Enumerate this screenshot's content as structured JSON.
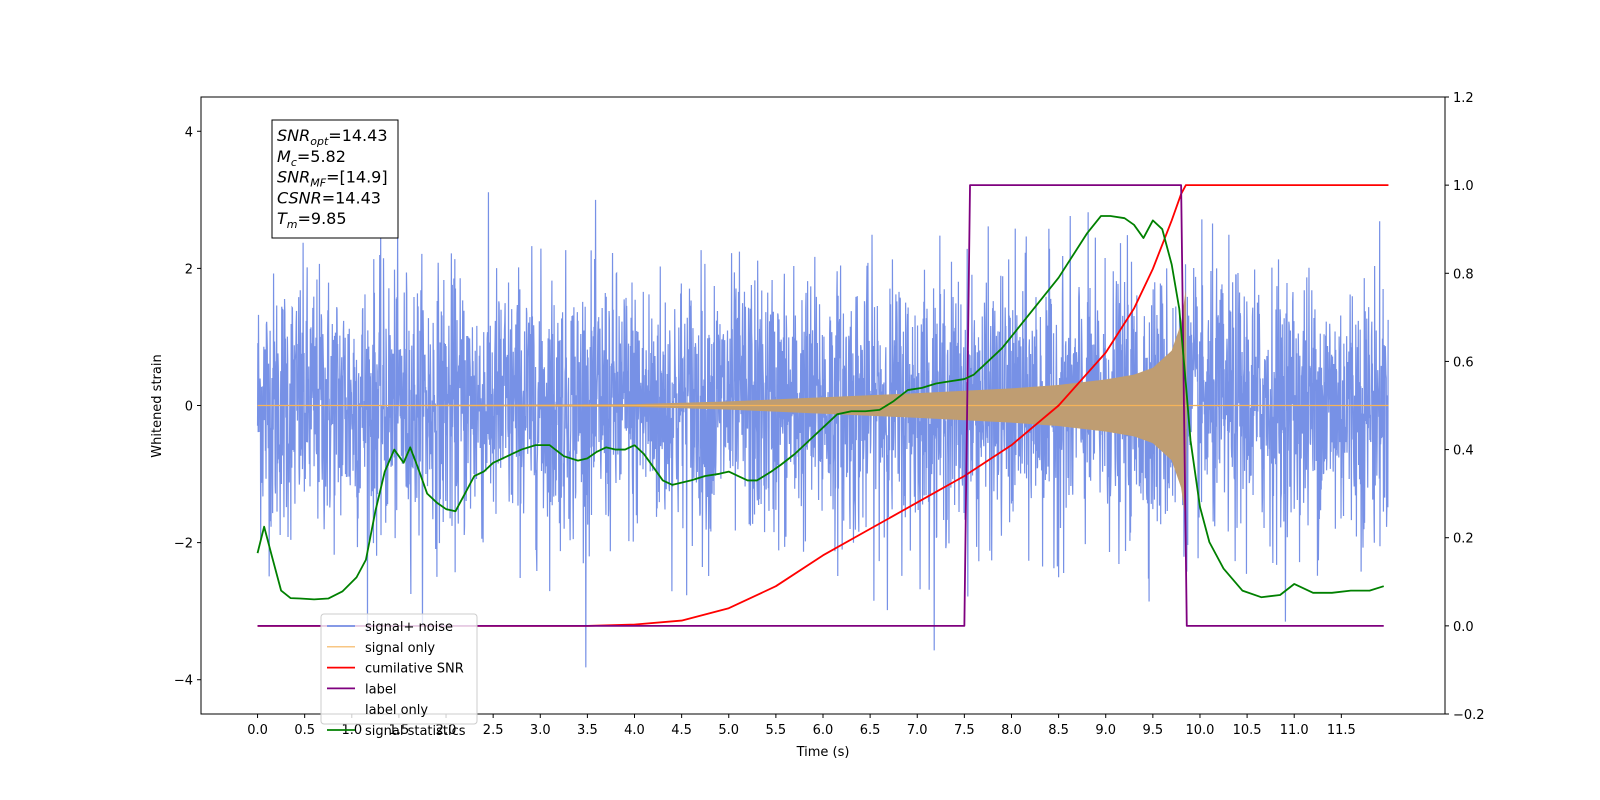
{
  "chart_data": {
    "type": "line",
    "title": "",
    "xlabel": "Time (s)",
    "ylabel_left": "Whitened strain",
    "ylabel_right": "",
    "xlim": [
      -0.6,
      12.6
    ],
    "ylim_left": [
      -4.5,
      4.5
    ],
    "ylim_right": [
      -0.2,
      1.2
    ],
    "x_ticks": [
      "0.0",
      "0.5",
      "1.0",
      "1.5",
      "2.0",
      "2.5",
      "3.0",
      "3.5",
      "4.0",
      "4.5",
      "5.0",
      "5.5",
      "6.0",
      "6.5",
      "7.0",
      "7.5",
      "8.0",
      "8.5",
      "9.0",
      "9.5",
      "10.0",
      "10.5",
      "11.0",
      "11.5"
    ],
    "y_ticks_left": [
      "−4",
      "−2",
      "0",
      "2",
      "4"
    ],
    "y_ticks_right": [
      "−0.2",
      "0.0",
      "0.2",
      "0.4",
      "0.6",
      "0.8",
      "1.0",
      "1.2"
    ],
    "grid": false,
    "legend_position": "lower-left",
    "annotation": {
      "lines": [
        {
          "base": "SNR",
          "sub": "opt",
          "rest": "=14.43"
        },
        {
          "base": "M",
          "sub": "c",
          "rest": "=5.82"
        },
        {
          "base": "SNR",
          "sub": "MF",
          "rest": "=[14.9]"
        },
        {
          "base": "CSNR",
          "sub": "",
          "rest": "=14.43"
        },
        {
          "base": "T",
          "sub": "m",
          "rest": "=9.85"
        }
      ]
    },
    "series": [
      {
        "name": "signal+ noise",
        "color": "#7791e6",
        "axis": "left",
        "style": "noise band, amplitude about ±2.5 with spikes to ±4"
      },
      {
        "name": "signal only",
        "color": "#f5b35a",
        "axis": "left",
        "style": "chirp envelope",
        "envelope": {
          "x": [
            0.0,
            4.0,
            5.0,
            6.0,
            7.0,
            8.0,
            8.5,
            9.0,
            9.3,
            9.5,
            9.7,
            9.8,
            9.85,
            9.86,
            12.0
          ],
          "y": [
            0.0,
            0.02,
            0.06,
            0.12,
            0.18,
            0.25,
            0.3,
            0.38,
            0.45,
            0.55,
            0.8,
            1.2,
            1.7,
            0.0,
            0.0
          ]
        }
      },
      {
        "name": "cumilative SNR",
        "color": "#ff0000",
        "axis": "right",
        "x": [
          0.0,
          3.5,
          4.0,
          4.5,
          5.0,
          5.5,
          6.0,
          6.5,
          7.0,
          7.5,
          8.0,
          8.5,
          9.0,
          9.3,
          9.5,
          9.7,
          9.8,
          9.85,
          12.0
        ],
        "y": [
          0.0,
          0.0,
          0.003,
          0.012,
          0.04,
          0.09,
          0.16,
          0.22,
          0.28,
          0.34,
          0.41,
          0.5,
          0.62,
          0.72,
          0.81,
          0.92,
          0.98,
          1.0,
          1.0
        ]
      },
      {
        "name": "label",
        "color": "#7f007f",
        "axis": "right",
        "x": [
          0.0,
          7.5,
          7.56,
          9.8,
          9.86,
          11.95
        ],
        "y": [
          0.0,
          0.0,
          1.0,
          1.0,
          0.0,
          0.0
        ]
      },
      {
        "name": "label only",
        "color": "#ffffff",
        "axis": "right",
        "style": "hidden (white)"
      },
      {
        "name": "signal statistics",
        "color": "#008000",
        "axis": "right",
        "x": [
          0.0,
          0.07,
          0.15,
          0.25,
          0.35,
          0.45,
          0.6,
          0.75,
          0.9,
          1.05,
          1.15,
          1.25,
          1.35,
          1.45,
          1.55,
          1.62,
          1.7,
          1.8,
          1.9,
          2.0,
          2.1,
          2.2,
          2.3,
          2.4,
          2.5,
          2.6,
          2.7,
          2.8,
          2.95,
          3.1,
          3.25,
          3.4,
          3.5,
          3.6,
          3.7,
          3.8,
          3.9,
          4.0,
          4.1,
          4.2,
          4.3,
          4.4,
          4.5,
          4.6,
          4.75,
          4.9,
          5.0,
          5.1,
          5.2,
          5.3,
          5.45,
          5.55,
          5.7,
          5.85,
          6.0,
          6.15,
          6.3,
          6.45,
          6.6,
          6.75,
          6.9,
          7.05,
          7.2,
          7.35,
          7.5,
          7.6,
          7.75,
          7.9,
          8.05,
          8.2,
          8.35,
          8.5,
          8.65,
          8.8,
          8.95,
          9.05,
          9.2,
          9.3,
          9.4,
          9.5,
          9.6,
          9.7,
          9.78,
          9.85,
          9.9,
          10.0,
          10.1,
          10.25,
          10.45,
          10.65,
          10.85,
          11.0,
          11.2,
          11.4,
          11.6,
          11.8,
          11.95
        ],
        "y": [
          0.165,
          0.225,
          0.16,
          0.08,
          0.063,
          0.062,
          0.06,
          0.062,
          0.078,
          0.11,
          0.15,
          0.26,
          0.35,
          0.4,
          0.37,
          0.405,
          0.36,
          0.3,
          0.28,
          0.265,
          0.26,
          0.3,
          0.34,
          0.35,
          0.37,
          0.38,
          0.39,
          0.4,
          0.41,
          0.41,
          0.385,
          0.375,
          0.38,
          0.395,
          0.405,
          0.4,
          0.4,
          0.41,
          0.39,
          0.36,
          0.33,
          0.32,
          0.325,
          0.33,
          0.34,
          0.345,
          0.35,
          0.34,
          0.33,
          0.33,
          0.35,
          0.365,
          0.39,
          0.42,
          0.45,
          0.48,
          0.487,
          0.487,
          0.49,
          0.51,
          0.535,
          0.54,
          0.55,
          0.555,
          0.56,
          0.57,
          0.6,
          0.63,
          0.67,
          0.71,
          0.75,
          0.79,
          0.84,
          0.89,
          0.93,
          0.93,
          0.925,
          0.91,
          0.88,
          0.92,
          0.9,
          0.82,
          0.72,
          0.55,
          0.42,
          0.27,
          0.19,
          0.13,
          0.08,
          0.065,
          0.07,
          0.095,
          0.075,
          0.075,
          0.08,
          0.08,
          0.09
        ]
      }
    ]
  }
}
